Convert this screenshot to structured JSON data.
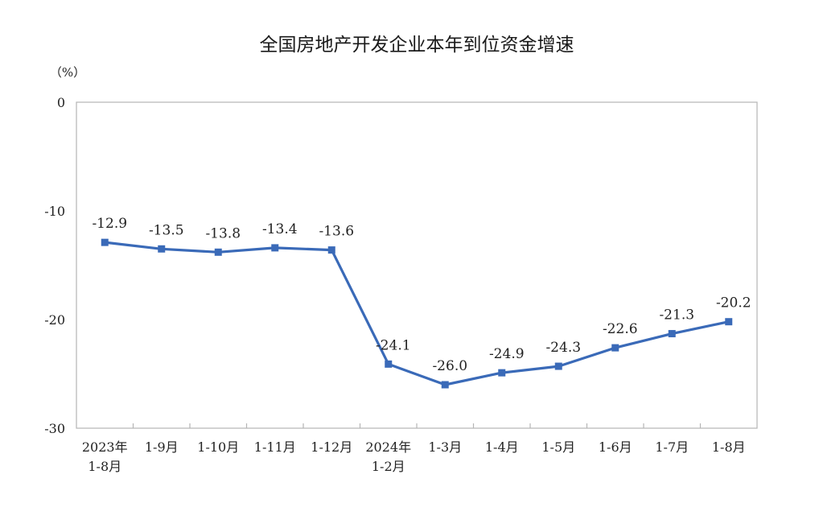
{
  "chart_data": {
    "type": "line",
    "title": "全国房地产开发企业本年到位资金增速",
    "unit_label": "（%）",
    "xlabel": "",
    "ylabel": "",
    "ylim": [
      -30,
      0
    ],
    "yticks": [
      0,
      -10,
      -20,
      -30
    ],
    "grid": false,
    "categories": [
      [
        "2023年",
        "1-8月"
      ],
      [
        "1-9月"
      ],
      [
        "1-10月"
      ],
      [
        "1-11月"
      ],
      [
        "1-12月"
      ],
      [
        "2024年",
        "1-2月"
      ],
      [
        "1-3月"
      ],
      [
        "1-4月"
      ],
      [
        "1-5月"
      ],
      [
        "1-6月"
      ],
      [
        "1-7月"
      ],
      [
        "1-8月"
      ]
    ],
    "series": [
      {
        "values": [
          -12.9,
          -13.5,
          -13.8,
          -13.4,
          -13.6,
          -24.1,
          -26.0,
          -24.9,
          -24.3,
          -22.6,
          -21.3,
          -20.2
        ],
        "labels": [
          "-12.9",
          "-13.5",
          "-13.8",
          "-13.4",
          "-13.6",
          "-24.1",
          "-26.0",
          "-24.9",
          "-24.3",
          "-22.6",
          "-21.3",
          "-20.2"
        ],
        "color": "#3a6ab8"
      }
    ]
  }
}
